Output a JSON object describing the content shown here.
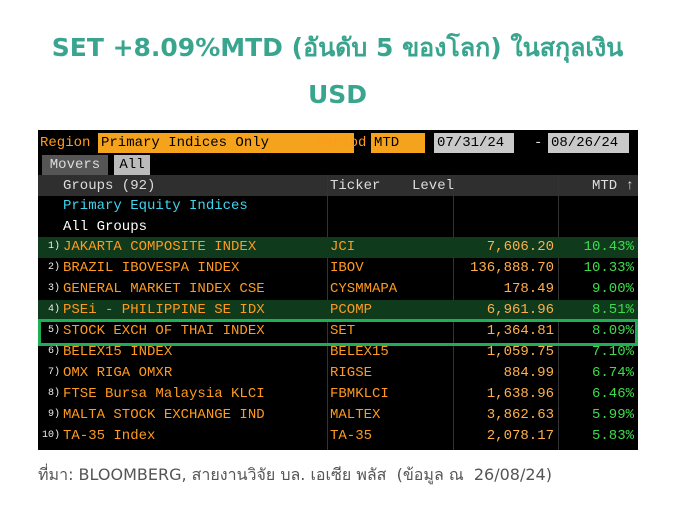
{
  "title_lines": [
    "SET +8.09%MTD (อันดับ 5 ของโลก) ในสกุลเงิน",
    "USD"
  ],
  "terminal": {
    "region_label": "Region",
    "region_value": "Primary Indices Only",
    "period_label": "Period",
    "period_value": "MTD",
    "start_date": "07/31/24",
    "date_separator": "-",
    "end_date": "08/26/24",
    "tabs": [
      "Movers",
      "All"
    ]
  },
  "table": {
    "columns": [
      "Groups (92)",
      "Ticker",
      "Level",
      "MTD ↑"
    ],
    "group_rows": [
      "Primary Equity Indices",
      "All Groups"
    ],
    "rows": [
      [
        "1)",
        "JAKARTA COMPOSITE INDEX",
        "JCI",
        "7,606.20",
        "10.43%"
      ],
      [
        "2)",
        "BRAZIL IBOVESPA INDEX",
        "IBOV",
        "136,888.70",
        "10.33%"
      ],
      [
        "3)",
        "GENERAL MARKET INDEX CSE",
        "CYSMMAPA",
        "178.49",
        "9.00%"
      ],
      [
        "4)",
        "PSEi - PHILIPPINE SE IDX",
        "PCOMP",
        "6,961.96",
        "8.51%"
      ],
      [
        "5)",
        "STOCK EXCH OF THAI INDEX",
        "SET",
        "1,364.81",
        "8.09%"
      ],
      [
        "6)",
        "BELEX15 INDEX",
        "BELEX15",
        "1,059.75",
        "7.10%"
      ],
      [
        "7)",
        "OMX RIGA OMXR",
        "RIGSE",
        "884.99",
        "6.74%"
      ],
      [
        "8)",
        "FTSE Bursa Malaysia KLCI",
        "FBMKLCI",
        "1,638.96",
        "6.46%"
      ],
      [
        "9)",
        "MALTA STOCK EXCHANGE IND",
        "MALTEX",
        "3,862.63",
        "5.99%"
      ],
      [
        "10)",
        "TA-35 Index",
        "TA-35",
        "2,078.17",
        "5.83%"
      ]
    ]
  },
  "source": "ที่มา: BLOOMBERG, สายงานวิจัย บล. เอเซีย พลัส  (ข้อมูล ณ  26/08/24)"
}
